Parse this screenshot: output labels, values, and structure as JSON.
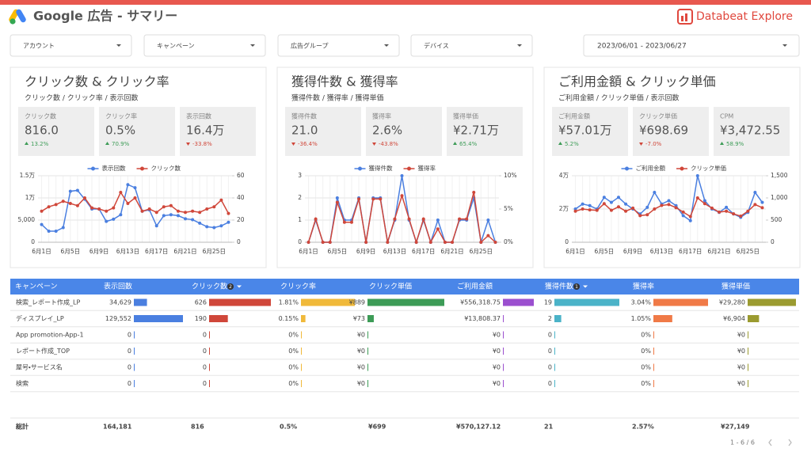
{
  "header": {
    "title": "Google 広告 - サマリー",
    "brand": "Databeat Explore"
  },
  "filters": [
    "アカウント",
    "キャンペーン",
    "広告グループ",
    "デバイス"
  ],
  "date_range": "2023/06/01 - 2023/06/27",
  "panels": [
    {
      "title": "クリック数 & クリック率",
      "subtitle": "クリック数 / クリック率 / 表示回数",
      "kpis": [
        {
          "label": "クリック数",
          "value": "816.0",
          "change": "13.2%",
          "trend": "up"
        },
        {
          "label": "クリック率",
          "value": "0.5%",
          "change": "70.9%",
          "trend": "up"
        },
        {
          "label": "表示回数",
          "value": "16.4万",
          "change": "-33.8%",
          "trend": "down"
        }
      ],
      "chart": {
        "type": "line",
        "categories": [
          "6月1日",
          null,
          null,
          null,
          "6月5日",
          null,
          null,
          null,
          "6月9日",
          null,
          null,
          null,
          "6月13日",
          null,
          null,
          null,
          "6月17日",
          null,
          null,
          null,
          "6月21日",
          null,
          null,
          null,
          "6月25日",
          null,
          null
        ],
        "series": [
          {
            "name": "表示回数",
            "color": "#4a7fe0",
            "axis": "y",
            "values": [
              4000,
              2500,
              2500,
              3300,
              11500,
              11700,
              9700,
              7500,
              7500,
              4700,
              5200,
              6200,
              13000,
              12300,
              7000,
              7300,
              3700,
              6000,
              6200,
              6000,
              5300,
              5100,
              4300,
              3500,
              3300,
              3700,
              4500
            ]
          },
          {
            "name": "クリック数",
            "color": "#d0473a",
            "axis": "y2",
            "values": [
              28,
              32,
              34,
              37,
              35,
              33,
              40,
              31,
              30,
              28,
              31,
              45,
              35,
              40,
              28,
              30,
              27,
              32,
              33,
              28,
              27,
              28,
              27,
              30,
              32,
              38,
              26
            ]
          }
        ],
        "ylim": [
          0,
          15000
        ],
        "yticks": [
          0,
          {
            "value": 5000,
            "label": "5,000"
          },
          {
            "value": 10000,
            "label": "1万"
          },
          {
            "value": 15000,
            "label": "1.5万"
          }
        ],
        "y2lim": [
          0,
          60
        ],
        "y2ticks": [
          0,
          20,
          40,
          60
        ],
        "grid": true
      }
    },
    {
      "title": "獲得件数 & 獲得率",
      "subtitle": "獲得件数 / 獲得率 / 獲得単価",
      "kpis": [
        {
          "label": "獲得件数",
          "value": "21.0",
          "change": "-36.4%",
          "trend": "down"
        },
        {
          "label": "獲得率",
          "value": "2.6%",
          "change": "-43.8%",
          "trend": "down"
        },
        {
          "label": "獲得単価",
          "value": "¥2.71万",
          "change": "65.4%",
          "trend": "up"
        }
      ],
      "chart": {
        "type": "line",
        "categories": [
          "6月1日",
          null,
          null,
          null,
          "6月5日",
          null,
          null,
          null,
          "6月9日",
          null,
          null,
          null,
          "6月13日",
          null,
          null,
          null,
          "6月17日",
          null,
          null,
          null,
          "6月21日",
          null,
          null,
          null,
          "6月25日",
          null,
          null
        ],
        "series": [
          {
            "name": "獲得件数",
            "color": "#4a7fe0",
            "axis": "y",
            "values": [
              0,
              1,
              0,
              0,
              2,
              1,
              1,
              2,
              0,
              2,
              2,
              0,
              1,
              3,
              1,
              0,
              1,
              0,
              1,
              0,
              0,
              1,
              1,
              2,
              0,
              1,
              0
            ]
          },
          {
            "name": "獲得率",
            "color": "#d0473a",
            "axis": "y2",
            "values": [
              0,
              3.5,
              0,
              0,
              6,
              3,
              3,
              6.5,
              0,
              6.5,
              6.5,
              0,
              3.5,
              7,
              3.5,
              0,
              3.5,
              0,
              2,
              0,
              0,
              3.5,
              3.5,
              7.5,
              0,
              1,
              0
            ]
          }
        ],
        "ylim": [
          0,
          3
        ],
        "yticks": [
          0,
          1,
          2,
          3
        ],
        "y2lim": [
          0,
          10
        ],
        "y2ticks": [
          {
            "value": 0,
            "label": "0%"
          },
          {
            "value": 5,
            "label": "5%"
          },
          {
            "value": 10,
            "label": "10%"
          }
        ],
        "grid": true
      }
    },
    {
      "title": "ご利用金額 & クリック単価",
      "subtitle": "ご利用金額 / クリック単価 / 表示回数",
      "kpis": [
        {
          "label": "ご利用金額",
          "value": "¥57.01万",
          "change": "5.2%",
          "trend": "up"
        },
        {
          "label": "クリック単価",
          "value": "¥698.69",
          "change": "-7.0%",
          "trend": "down"
        },
        {
          "label": "CPM",
          "value": "¥3,472.55",
          "change": "58.9%",
          "trend": "up"
        }
      ],
      "chart": {
        "type": "line",
        "categories": [
          "6月1日",
          null,
          null,
          null,
          "6月5日",
          null,
          null,
          null,
          "6月9日",
          null,
          null,
          null,
          "6月13日",
          null,
          null,
          null,
          "6月17日",
          null,
          null,
          null,
          "6月21日",
          null,
          null,
          null,
          "6月25日",
          null,
          null
        ],
        "series": [
          {
            "name": "ご利用金額",
            "color": "#4a7fe0",
            "axis": "y",
            "values": [
              20000,
              23000,
              22000,
              20000,
              27000,
              24000,
              27000,
              23000,
              20000,
              17000,
              21000,
              30000,
              23000,
              25000,
              22000,
              16000,
              13000,
              40000,
              25000,
              20000,
              18000,
              21000,
              17000,
              15000,
              18000,
              30000,
              24000
            ]
          },
          {
            "name": "クリック単価",
            "color": "#d0473a",
            "axis": "y2",
            "values": [
              700,
              750,
              730,
              720,
              870,
              720,
              800,
              700,
              770,
              600,
              620,
              750,
              830,
              850,
              780,
              680,
              580,
              1000,
              870,
              770,
              680,
              700,
              640,
              590,
              700,
              850,
              780
            ]
          }
        ],
        "ylim": [
          0,
          40000
        ],
        "yticks": [
          0,
          {
            "value": 20000,
            "label": "2万"
          },
          {
            "value": 40000,
            "label": "4万"
          }
        ],
        "y2lim": [
          0,
          1500
        ],
        "y2ticks": [
          0,
          500,
          {
            "value": 1000,
            "label": "1,000"
          },
          {
            "value": 1500,
            "label": "1,500"
          }
        ],
        "grid": true
      }
    }
  ],
  "table": {
    "columns": [
      {
        "name": "キャンペーン"
      },
      {
        "name": "表示回数",
        "color": "#4a7fe0"
      },
      {
        "name": "クリック数",
        "color": "#d0473a",
        "sort_order": 2
      },
      {
        "name": "クリック率",
        "color": "#f0b93a"
      },
      {
        "name": "クリック単価",
        "color": "#3d9c57"
      },
      {
        "name": "ご利用金額",
        "color": "#9b4fcf"
      },
      {
        "name": "獲得件数",
        "color": "#4bb3c8",
        "sort_order": 1
      },
      {
        "name": "獲得率",
        "color": "#f07a47"
      },
      {
        "name": "獲得単価",
        "color": "#9b9b30"
      }
    ],
    "rows": [
      {
        "campaign": "検索_レポート作成_LP",
        "cells": [
          {
            "value": 34629,
            "label": "34,629"
          },
          626,
          {
            "value": 1.81,
            "label": "1.81%"
          },
          {
            "value": 889,
            "label": "¥889"
          },
          {
            "value": 556318.75,
            "label": "¥556,318.75"
          },
          19,
          {
            "value": 3.04,
            "label": "3.04%"
          },
          {
            "value": 29280,
            "label": "¥29,280"
          }
        ]
      },
      {
        "campaign": "ディスプレイ_LP",
        "cells": [
          {
            "value": 129552,
            "label": "129,552"
          },
          190,
          {
            "value": 0.15,
            "label": "0.15%"
          },
          {
            "value": 73,
            "label": "¥73"
          },
          {
            "value": 13808.37,
            "label": "¥13,808.37"
          },
          2,
          {
            "value": 1.05,
            "label": "1.05%"
          },
          {
            "value": 6904,
            "label": "¥6,904"
          }
        ]
      },
      {
        "campaign": "App promotion-App-1",
        "cells": [
          0,
          0,
          {
            "value": 0,
            "label": "0%"
          },
          {
            "value": 0,
            "label": "¥0"
          },
          {
            "value": 0,
            "label": "¥0"
          },
          0,
          {
            "value": 0,
            "label": "0%"
          },
          {
            "value": 0,
            "label": "¥0"
          }
        ]
      },
      {
        "campaign": "レポート作成_TOP",
        "cells": [
          0,
          0,
          {
            "value": 0,
            "label": "0%"
          },
          {
            "value": 0,
            "label": "¥0"
          },
          {
            "value": 0,
            "label": "¥0"
          },
          0,
          {
            "value": 0,
            "label": "0%"
          },
          {
            "value": 0,
            "label": "¥0"
          }
        ]
      },
      {
        "campaign": "屋号・サービス名",
        "cells": [
          0,
          0,
          {
            "value": 0,
            "label": "0%"
          },
          {
            "value": 0,
            "label": "¥0"
          },
          {
            "value": 0,
            "label": "¥0"
          },
          0,
          {
            "value": 0,
            "label": "0%"
          },
          {
            "value": 0,
            "label": "¥0"
          }
        ]
      },
      {
        "campaign": "検索",
        "cells": [
          0,
          0,
          {
            "value": 0,
            "label": "0%"
          },
          {
            "value": 0,
            "label": "¥0"
          },
          {
            "value": 0,
            "label": "¥0"
          },
          0,
          {
            "value": 0,
            "label": "0%"
          },
          {
            "value": 0,
            "label": "¥0"
          }
        ]
      }
    ],
    "total": {
      "label": "総計",
      "cells": [
        {
          "value": 164181,
          "label": "164,181"
        },
        816,
        {
          "value": 0.5,
          "label": "0.5%"
        },
        {
          "value": 699,
          "label": "¥699"
        },
        {
          "value": 570127.12,
          "label": "¥570,127.12"
        },
        21,
        {
          "value": 2.57,
          "label": "2.57%"
        },
        {
          "value": 27149,
          "label": "¥27,149"
        }
      ]
    }
  },
  "pagination": "1 - 6 / 6"
}
